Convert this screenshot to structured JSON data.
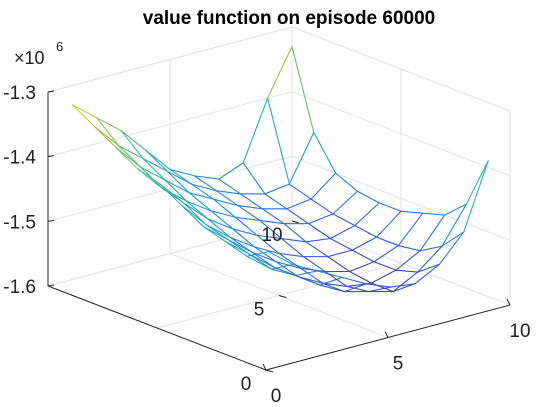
{
  "chart_data": {
    "type": "surface",
    "title": "value function on episode 60000",
    "z_multiplier_label": "10",
    "z_multiplier_exponent": "6",
    "x_ticks": [
      {
        "value": 0,
        "label": "0"
      },
      {
        "value": 5,
        "label": "5"
      },
      {
        "value": 10,
        "label": "10"
      }
    ],
    "y_ticks": [
      {
        "value": 0,
        "label": "0"
      },
      {
        "value": 5,
        "label": "5"
      },
      {
        "value": 10,
        "label": "10"
      }
    ],
    "z_ticks": [
      {
        "value": -1.3,
        "label": "-1.3"
      },
      {
        "value": -1.4,
        "label": "-1.4"
      },
      {
        "value": -1.5,
        "label": "-1.5"
      },
      {
        "value": -1.6,
        "label": "-1.6"
      }
    ],
    "xlim": [
      0,
      10
    ],
    "ylim": [
      0,
      10
    ],
    "zlim": [
      -1.6,
      -1.3
    ],
    "grid": true,
    "colormap": [
      "#3e26a8",
      "#2f63e8",
      "#1e9bd6",
      "#2ebc9b",
      "#a9c437",
      "#f6d72d"
    ],
    "x": [
      1,
      2,
      3,
      4,
      5,
      6,
      7,
      8,
      9,
      10
    ],
    "y": [
      1,
      2,
      3,
      4,
      5,
      6,
      7,
      8,
      9,
      10
    ],
    "z_by_y": [
      [
        -1.44,
        -1.47,
        -1.49,
        -1.51,
        -1.53,
        -1.545,
        -1.55,
        -1.53,
        -1.49,
        -1.39
      ],
      [
        -1.46,
        -1.49,
        -1.51,
        -1.535,
        -1.555,
        -1.565,
        -1.575,
        -1.555,
        -1.525,
        -1.47
      ],
      [
        -1.45,
        -1.48,
        -1.51,
        -1.535,
        -1.555,
        -1.57,
        -1.575,
        -1.565,
        -1.545,
        -1.5
      ],
      [
        -1.44,
        -1.47,
        -1.5,
        -1.525,
        -1.545,
        -1.56,
        -1.57,
        -1.565,
        -1.55,
        -1.51
      ],
      [
        -1.42,
        -1.46,
        -1.49,
        -1.515,
        -1.535,
        -1.55,
        -1.56,
        -1.56,
        -1.55,
        -1.52
      ],
      [
        -1.4,
        -1.44,
        -1.475,
        -1.5,
        -1.52,
        -1.535,
        -1.55,
        -1.555,
        -1.545,
        -1.52
      ],
      [
        -1.39,
        -1.43,
        -1.46,
        -1.485,
        -1.505,
        -1.52,
        -1.535,
        -1.545,
        -1.54,
        -1.515
      ],
      [
        -1.37,
        -1.41,
        -1.44,
        -1.47,
        -1.49,
        -1.51,
        -1.525,
        -1.535,
        -1.53,
        -1.5
      ],
      [
        -1.35,
        -1.39,
        -1.42,
        -1.45,
        -1.48,
        -1.5,
        -1.515,
        -1.525,
        -1.52,
        -1.45
      ],
      [
        -1.33,
        -1.36,
        -1.39,
        -1.43,
        -1.47,
        -1.49,
        -1.505,
        -1.49,
        -1.4,
        -1.33
      ]
    ]
  }
}
